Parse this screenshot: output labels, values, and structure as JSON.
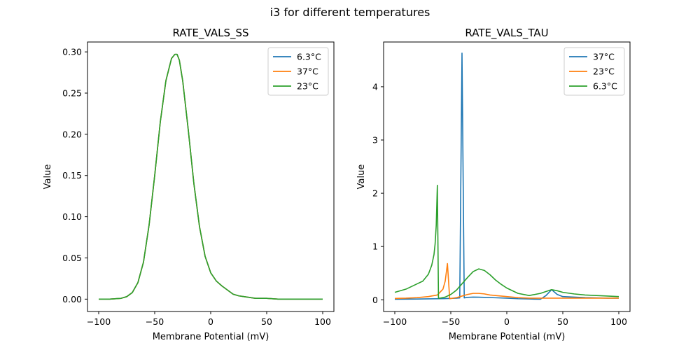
{
  "figure": {
    "suptitle": "i3 for different temperatures"
  },
  "chart_data": [
    {
      "type": "line",
      "title": "RATE_VALS_SS",
      "xlabel": "Membrane Potential (mV)",
      "ylabel": "Value",
      "xlim": [
        -110,
        110
      ],
      "ylim": [
        -0.015,
        0.312
      ],
      "xticks": [
        -100,
        -50,
        0,
        50,
        100
      ],
      "xtick_labels": [
        "−100",
        "−50",
        "0",
        "50",
        "100"
      ],
      "yticks": [
        0.0,
        0.05,
        0.1,
        0.15,
        0.2,
        0.25,
        0.3
      ],
      "ytick_labels": [
        "0.00",
        "0.05",
        "0.10",
        "0.15",
        "0.20",
        "0.25",
        "0.30"
      ],
      "legend": "top-right",
      "series": [
        {
          "name": "6.3°C",
          "color": "#1f77b4",
          "x": [
            -100,
            -90,
            -80,
            -75,
            -70,
            -65,
            -60,
            -55,
            -50,
            -45,
            -40,
            -35,
            -32,
            -30,
            -28,
            -25,
            -20,
            -15,
            -10,
            -5,
            0,
            5,
            10,
            15,
            20,
            25,
            30,
            40,
            50,
            60,
            80,
            100
          ],
          "y": [
            0,
            0,
            0.001,
            0.003,
            0.008,
            0.02,
            0.045,
            0.09,
            0.15,
            0.215,
            0.265,
            0.292,
            0.297,
            0.297,
            0.29,
            0.265,
            0.205,
            0.14,
            0.088,
            0.052,
            0.032,
            0.022,
            0.016,
            0.011,
            0.006,
            0.004,
            0.003,
            0.001,
            0.001,
            0,
            0,
            0
          ]
        },
        {
          "name": "37°C",
          "color": "#ff7f0e",
          "x": [
            -100,
            -90,
            -80,
            -75,
            -70,
            -65,
            -60,
            -55,
            -50,
            -45,
            -40,
            -35,
            -32,
            -30,
            -28,
            -25,
            -20,
            -15,
            -10,
            -5,
            0,
            5,
            10,
            15,
            20,
            25,
            30,
            40,
            50,
            60,
            80,
            100
          ],
          "y": [
            0,
            0,
            0.001,
            0.003,
            0.008,
            0.02,
            0.045,
            0.09,
            0.15,
            0.215,
            0.265,
            0.292,
            0.297,
            0.297,
            0.29,
            0.265,
            0.205,
            0.14,
            0.088,
            0.052,
            0.032,
            0.022,
            0.016,
            0.011,
            0.006,
            0.004,
            0.003,
            0.001,
            0.001,
            0,
            0,
            0
          ]
        },
        {
          "name": "23°C",
          "color": "#2ca02c",
          "x": [
            -100,
            -90,
            -80,
            -75,
            -70,
            -65,
            -60,
            -55,
            -50,
            -45,
            -40,
            -35,
            -32,
            -30,
            -28,
            -25,
            -20,
            -15,
            -10,
            -5,
            0,
            5,
            10,
            15,
            20,
            25,
            30,
            40,
            50,
            60,
            80,
            100
          ],
          "y": [
            0,
            0,
            0.001,
            0.003,
            0.008,
            0.02,
            0.045,
            0.09,
            0.15,
            0.215,
            0.265,
            0.292,
            0.297,
            0.297,
            0.29,
            0.265,
            0.205,
            0.14,
            0.088,
            0.052,
            0.032,
            0.022,
            0.016,
            0.011,
            0.006,
            0.004,
            0.003,
            0.001,
            0.001,
            0,
            0,
            0
          ]
        }
      ]
    },
    {
      "type": "line",
      "title": "RATE_VALS_TAU",
      "xlabel": "Membrane Potential (mV)",
      "ylabel": "Value",
      "xlim": [
        -110,
        110
      ],
      "ylim": [
        -0.22,
        4.84
      ],
      "xticks": [
        -100,
        -50,
        0,
        50,
        100
      ],
      "xtick_labels": [
        "−100",
        "−50",
        "0",
        "50",
        "100"
      ],
      "yticks": [
        0,
        1,
        2,
        3,
        4
      ],
      "ytick_labels": [
        "0",
        "1",
        "2",
        "3",
        "4"
      ],
      "legend": "top-right",
      "series": [
        {
          "name": "37°C",
          "color": "#1f77b4",
          "x": [
            -100,
            -90,
            -80,
            -70,
            -60,
            -50,
            -45,
            -42,
            -40,
            -38,
            -35,
            -30,
            -25,
            -20,
            -10,
            0,
            10,
            20,
            30,
            35,
            40,
            45,
            50,
            60,
            70,
            80,
            90,
            100
          ],
          "y": [
            0.01,
            0.012,
            0.014,
            0.017,
            0.02,
            0.025,
            0.03,
            0.035,
            4.63,
            0.035,
            0.045,
            0.05,
            0.048,
            0.045,
            0.038,
            0.03,
            0.02,
            0.015,
            0.01,
            0.08,
            0.19,
            0.1,
            0.06,
            0.05,
            0.04,
            0.035,
            0.03,
            0.03
          ]
        },
        {
          "name": "23°C",
          "color": "#ff7f0e",
          "x": [
            -100,
            -90,
            -80,
            -70,
            -62,
            -57,
            -55,
            -53,
            -51,
            -48,
            -45,
            -40,
            -35,
            -30,
            -25,
            -20,
            -15,
            -10,
            0,
            10,
            20,
            30,
            40,
            50,
            60,
            70,
            80,
            90,
            100
          ],
          "y": [
            0.025,
            0.03,
            0.04,
            0.06,
            0.09,
            0.2,
            0.35,
            0.68,
            0.02,
            0.03,
            0.04,
            0.07,
            0.1,
            0.12,
            0.12,
            0.11,
            0.09,
            0.08,
            0.06,
            0.04,
            0.03,
            0.03,
            0.03,
            0.03,
            0.03,
            0.03,
            0.03,
            0.03,
            0.03
          ]
        },
        {
          "name": "6.3°C",
          "color": "#2ca02c",
          "x": [
            -100,
            -90,
            -80,
            -75,
            -70,
            -67,
            -65,
            -64,
            -63,
            -62,
            -61,
            -60,
            -55,
            -50,
            -45,
            -40,
            -35,
            -30,
            -25,
            -20,
            -15,
            -10,
            -5,
            0,
            10,
            20,
            30,
            40,
            45,
            50,
            60,
            70,
            80,
            90,
            100
          ],
          "y": [
            0.14,
            0.2,
            0.3,
            0.35,
            0.48,
            0.65,
            0.85,
            1.05,
            1.4,
            2.15,
            0.03,
            0.03,
            0.05,
            0.1,
            0.18,
            0.3,
            0.42,
            0.53,
            0.58,
            0.55,
            0.47,
            0.37,
            0.29,
            0.22,
            0.12,
            0.08,
            0.12,
            0.19,
            0.17,
            0.14,
            0.11,
            0.09,
            0.08,
            0.07,
            0.06
          ]
        }
      ]
    }
  ]
}
